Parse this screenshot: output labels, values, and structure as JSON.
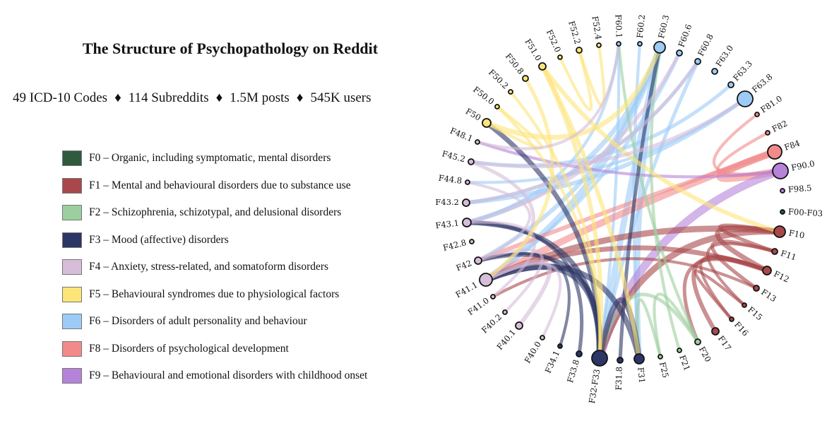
{
  "title": "The Structure of Psychopathology on Reddit",
  "stats": [
    "49 ICD-10 Codes",
    "114 Subreddits",
    "1.5M posts",
    "545K users"
  ],
  "separator": "♦",
  "legend": [
    {
      "code": "F0",
      "label": "F0 – Organic, including symptomatic, mental disorders",
      "color": "#2f5a3e"
    },
    {
      "code": "F1",
      "label": "F1 – Mental and behavioural disorders due to substance use",
      "color": "#a8484a"
    },
    {
      "code": "F2",
      "label": "F2 – Schizophrenia, schizotypal, and delusional disorders",
      "color": "#9ccf9e"
    },
    {
      "code": "F3",
      "label": "F3 – Mood (affective) disorders",
      "color": "#2b3566"
    },
    {
      "code": "F4",
      "label": "F4 – Anxiety, stress-related, and somatoform disorders",
      "color": "#d6bdd8"
    },
    {
      "code": "F5",
      "label": "F5 – Behavioural syndromes due to physiological factors",
      "color": "#fde57a"
    },
    {
      "code": "F6",
      "label": "F6 – Disorders of adult personality and behaviour",
      "color": "#9dcbf6"
    },
    {
      "code": "F8",
      "label": "F8 – Disorders of psychological development",
      "color": "#f28a8a"
    },
    {
      "code": "F9",
      "label": "F9 – Behavioural and emotional disorders with childhood onset",
      "color": "#b683da"
    }
  ],
  "nodes": [
    {
      "label": "F60.1",
      "group": "F6"
    },
    {
      "label": "F60.2",
      "group": "F6"
    },
    {
      "label": "F60.3",
      "group": "F6"
    },
    {
      "label": "F60.6",
      "group": "F6"
    },
    {
      "label": "F60.8",
      "group": "F6"
    },
    {
      "label": "F63.0",
      "group": "F6"
    },
    {
      "label": "F63.3",
      "group": "F6"
    },
    {
      "label": "F63.8",
      "group": "F6"
    },
    {
      "label": "F81.0",
      "group": "F8"
    },
    {
      "label": "F82",
      "group": "F8"
    },
    {
      "label": "F84",
      "group": "F8"
    },
    {
      "label": "F90.0",
      "group": "F9"
    },
    {
      "label": "F98.5",
      "group": "F9"
    },
    {
      "label": "F00-F03",
      "group": "F0"
    },
    {
      "label": "F10",
      "group": "F1"
    },
    {
      "label": "F11",
      "group": "F1"
    },
    {
      "label": "F12",
      "group": "F1"
    },
    {
      "label": "F13",
      "group": "F1"
    },
    {
      "label": "F15",
      "group": "F1"
    },
    {
      "label": "F16",
      "group": "F1"
    },
    {
      "label": "F17",
      "group": "F1"
    },
    {
      "label": "F20",
      "group": "F2"
    },
    {
      "label": "F21",
      "group": "F2"
    },
    {
      "label": "F25",
      "group": "F2"
    },
    {
      "label": "F31",
      "group": "F3"
    },
    {
      "label": "F31.8",
      "group": "F3"
    },
    {
      "label": "F32-F33",
      "group": "F3"
    },
    {
      "label": "F33.8",
      "group": "F3"
    },
    {
      "label": "F34.1",
      "group": "F3"
    },
    {
      "label": "F40.0",
      "group": "F4"
    },
    {
      "label": "F40.1",
      "group": "F4"
    },
    {
      "label": "F40.2",
      "group": "F4"
    },
    {
      "label": "F41.0",
      "group": "F4"
    },
    {
      "label": "F41.1",
      "group": "F4"
    },
    {
      "label": "F42",
      "group": "F4"
    },
    {
      "label": "F42.8",
      "group": "F4"
    },
    {
      "label": "F43.1",
      "group": "F4"
    },
    {
      "label": "F43.2",
      "group": "F4"
    },
    {
      "label": "F44.8",
      "group": "F4"
    },
    {
      "label": "F45.2",
      "group": "F4"
    },
    {
      "label": "F48.1",
      "group": "F4"
    },
    {
      "label": "F50",
      "group": "F5"
    },
    {
      "label": "F50.0",
      "group": "F5"
    },
    {
      "label": "F50.2",
      "group": "F5"
    },
    {
      "label": "F50.8",
      "group": "F5"
    },
    {
      "label": "F51.0",
      "group": "F5"
    },
    {
      "label": "F52.0",
      "group": "F5"
    },
    {
      "label": "F52.2",
      "group": "F5"
    },
    {
      "label": "F52.4",
      "group": "F5"
    }
  ],
  "links": [
    [
      "F60.1",
      "F32-F33"
    ],
    [
      "F60.1",
      "F43.1"
    ],
    [
      "F60.2",
      "F31"
    ],
    [
      "F60.3",
      "F32-F33"
    ],
    [
      "F60.3",
      "F43.1"
    ],
    [
      "F60.3",
      "F41.1"
    ],
    [
      "F60.3",
      "F31"
    ],
    [
      "F60.3",
      "F42"
    ],
    [
      "F60.6",
      "F41.1"
    ],
    [
      "F60.8",
      "F32-F33"
    ],
    [
      "F60.8",
      "F43.2"
    ],
    [
      "F63.3",
      "F45.2"
    ],
    [
      "F63.8",
      "F43.2"
    ],
    [
      "F63.8",
      "F44.8"
    ],
    [
      "F81.0",
      "F90.0"
    ],
    [
      "F82",
      "F90.0"
    ],
    [
      "F84",
      "F90.0"
    ],
    [
      "F84",
      "F41.1"
    ],
    [
      "F84",
      "F42"
    ],
    [
      "F90.0",
      "F32-F33"
    ],
    [
      "F90.0",
      "F48.1"
    ],
    [
      "F10",
      "F11"
    ],
    [
      "F10",
      "F32-F33"
    ],
    [
      "F10",
      "F41.1"
    ],
    [
      "F10",
      "F12"
    ],
    [
      "F11",
      "F15"
    ],
    [
      "F11",
      "F13"
    ],
    [
      "F12",
      "F41.1"
    ],
    [
      "F12",
      "F20"
    ],
    [
      "F13",
      "F41.0"
    ],
    [
      "F15",
      "F16"
    ],
    [
      "F17",
      "F12"
    ],
    [
      "F16",
      "F12"
    ],
    [
      "F20",
      "F25"
    ],
    [
      "F20",
      "F32-F33"
    ],
    [
      "F21",
      "F60.3"
    ],
    [
      "F25",
      "F31"
    ],
    [
      "F20",
      "F60.1"
    ],
    [
      "F31",
      "F32-F33"
    ],
    [
      "F31",
      "F41.1"
    ],
    [
      "F31.8",
      "F60.3"
    ],
    [
      "F32-F33",
      "F41.1"
    ],
    [
      "F32-F33",
      "F42"
    ],
    [
      "F32-F33",
      "F43.1"
    ],
    [
      "F32-F33",
      "F50"
    ],
    [
      "F33.8",
      "F43.1"
    ],
    [
      "F34.1",
      "F42"
    ],
    [
      "F40.0",
      "F41.1"
    ],
    [
      "F40.1",
      "F41.1"
    ],
    [
      "F40.2",
      "F42"
    ],
    [
      "F41.0",
      "F43.1"
    ],
    [
      "F41.1",
      "F45.2"
    ],
    [
      "F42",
      "F44.8"
    ],
    [
      "F43.1",
      "F60.6"
    ],
    [
      "F43.2",
      "F60.8"
    ],
    [
      "F50",
      "F50.0"
    ],
    [
      "F50.0",
      "F32-F33"
    ],
    [
      "F50.2",
      "F32-F33"
    ],
    [
      "F50.8",
      "F41.1"
    ],
    [
      "F51.0",
      "F32-F33"
    ],
    [
      "F51.0",
      "F31"
    ],
    [
      "F51.0",
      "F10"
    ],
    [
      "F52.0",
      "F52.2"
    ],
    [
      "F52.2",
      "F52.4"
    ],
    [
      "F50",
      "F60.3"
    ],
    [
      "F48.1",
      "F60.1"
    ],
    [
      "F45.2",
      "F63.8"
    ]
  ]
}
